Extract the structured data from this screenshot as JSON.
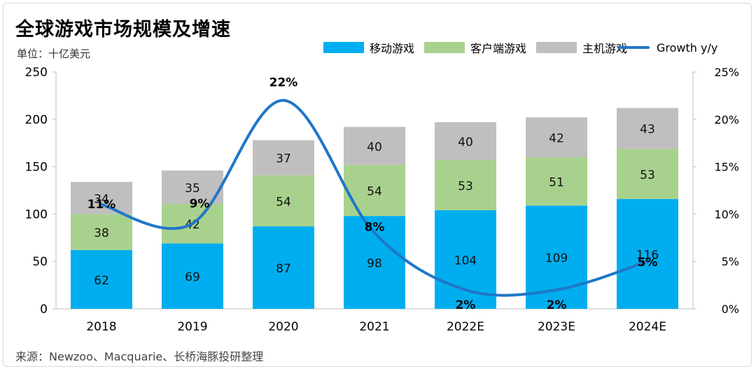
{
  "title": "全球游戏市场规模及增速",
  "unit_label": "单位：十亿美元",
  "source": "来源：Newzoo、Macquarie、长桥海豚投研整理",
  "colors": {
    "mobile": "#00aeef",
    "pc": "#a9d18e",
    "console": "#bfbfbf",
    "growth": "#1f77c8"
  },
  "chart_data": {
    "type": "bar",
    "stacked": true,
    "categories": [
      "2018",
      "2019",
      "2020",
      "2021",
      "2022E",
      "2023E",
      "2024E"
    ],
    "series": [
      {
        "name": "移动游戏",
        "values": [
          62,
          69,
          87,
          98,
          104,
          109,
          116
        ]
      },
      {
        "name": "客户端游戏",
        "values": [
          38,
          42,
          54,
          54,
          53,
          51,
          53
        ]
      },
      {
        "name": "主机游戏",
        "values": [
          34,
          35,
          37,
          40,
          40,
          42,
          43
        ]
      }
    ],
    "line_series": {
      "name": "Growth y/y",
      "values": [
        11,
        9,
        22,
        8,
        2,
        2,
        5
      ],
      "value_labels": [
        "11%",
        "9%",
        "22%",
        "8%",
        "2%",
        "2%",
        "5%"
      ]
    },
    "ylim": [
      0,
      250
    ],
    "yticks": [
      "0",
      "50",
      "100",
      "150",
      "200",
      "250"
    ],
    "y2lim": [
      0,
      25
    ],
    "y2ticks": [
      "0%",
      "5%",
      "10%",
      "15%",
      "20%",
      "25%"
    ],
    "legend_position": "top-right",
    "grid": false
  }
}
